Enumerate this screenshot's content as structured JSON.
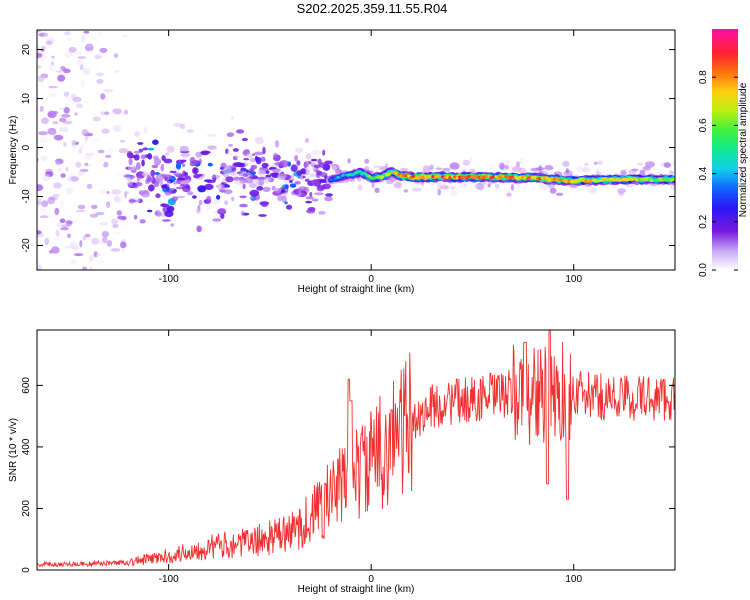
{
  "title": "S202.2025.359.11.55.R04",
  "colors": {
    "snr_line": "#f03030",
    "spectro_ridge": "#e0203a",
    "colormap": [
      "#ffffff",
      "#e8d8f8",
      "#b070ee",
      "#7a18e0",
      "#3c10f0",
      "#1060ff",
      "#10c8e8",
      "#10e8a0",
      "#40f040",
      "#c8f010",
      "#ffd010",
      "#ff7010",
      "#ff2030",
      "#ff10a0"
    ]
  },
  "chart_data": [
    {
      "type": "heatmap",
      "name": "spectrogram",
      "xlabel": "Height of straight line (km)",
      "ylabel": "Frequency (Hz)",
      "xlim": [
        -165,
        150
      ],
      "ylim": [
        -25,
        24
      ],
      "xticks": [
        -100,
        0,
        100
      ],
      "yticks": [
        -20,
        -10,
        0,
        10,
        20
      ],
      "colorbar": {
        "label": "Normalized spectral amplitude",
        "range": [
          0,
          1
        ],
        "ticks": [
          "0.0",
          "0.2",
          "0.4",
          "0.6",
          "0.8"
        ]
      },
      "ridge": {
        "x": [
          -20,
          -15,
          -10,
          -5,
          0,
          5,
          10,
          15,
          20,
          40,
          60,
          80,
          100,
          120,
          150
        ],
        "y": [
          -6.5,
          -6.0,
          -5.5,
          -5.0,
          -6.2,
          -6.0,
          -5.0,
          -5.8,
          -6.0,
          -6.0,
          -6.0,
          -6.2,
          -6.8,
          -6.5,
          -6.5
        ]
      },
      "ridge_amplitude": {
        "x": [
          -20,
          -10,
          0,
          20,
          60,
          100,
          150
        ],
        "y": [
          0.4,
          0.5,
          0.6,
          0.85,
          0.85,
          0.8,
          0.65
        ]
      }
    },
    {
      "type": "line",
      "name": "snr",
      "xlabel": "Height of straight line (km)",
      "ylabel": "SNR (10 * v/v)",
      "xlim": [
        -165,
        150
      ],
      "ylim": [
        0,
        780
      ],
      "xticks": [
        -100,
        0,
        100
      ],
      "yticks": [
        0,
        200,
        400,
        600
      ],
      "envelope": {
        "x": [
          -165,
          -140,
          -120,
          -100,
          -80,
          -60,
          -40,
          -30,
          -20,
          -10,
          0,
          10,
          20,
          30,
          40,
          60,
          80,
          85,
          88,
          90,
          95,
          100,
          120,
          150
        ],
        "y": [
          18,
          20,
          25,
          45,
          75,
          90,
          120,
          170,
          240,
          300,
          350,
          430,
          480,
          530,
          545,
          565,
          580,
          570,
          540,
          560,
          580,
          570,
          560,
          560
        ]
      },
      "spikes": [
        {
          "x": -11,
          "y": 620
        },
        {
          "x": -10,
          "y": 550
        },
        {
          "x": 10,
          "y": 520
        },
        {
          "x": 76,
          "y": 740
        },
        {
          "x": 88,
          "y": 780
        },
        {
          "x": 87,
          "y": 280
        },
        {
          "x": 97,
          "y": 230
        }
      ]
    }
  ]
}
